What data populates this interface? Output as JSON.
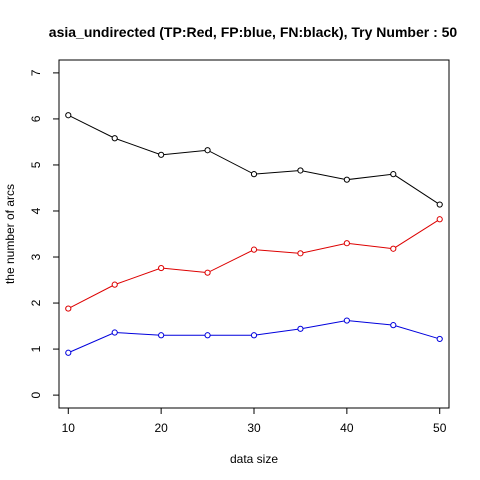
{
  "chart_data": {
    "type": "line",
    "title": "asia_undirected  (TP:Red, FP:blue, FN:black),  Try Number :  50",
    "xlabel": "data size",
    "ylabel": "the number of arcs",
    "x": [
      10,
      15,
      20,
      25,
      30,
      35,
      40,
      45,
      50
    ],
    "x_ticks": [
      10,
      20,
      30,
      40,
      50
    ],
    "y_ticks": [
      0,
      1,
      2,
      3,
      4,
      5,
      6,
      7
    ],
    "xlim": [
      9,
      51
    ],
    "ylim": [
      -0.28,
      7.28
    ],
    "grid": false,
    "legend": "none",
    "series": [
      {
        "color": "#000000",
        "values": [
          6.08,
          5.58,
          5.22,
          5.32,
          4.8,
          4.88,
          4.68,
          4.8,
          4.14
        ]
      },
      {
        "color": "#dd0000",
        "values": [
          1.88,
          2.4,
          2.76,
          2.66,
          3.16,
          3.08,
          3.3,
          3.18,
          3.82
        ]
      },
      {
        "color": "#0000dd",
        "values": [
          0.92,
          1.36,
          1.3,
          1.3,
          1.3,
          1.44,
          1.62,
          1.52,
          1.22
        ]
      }
    ]
  }
}
